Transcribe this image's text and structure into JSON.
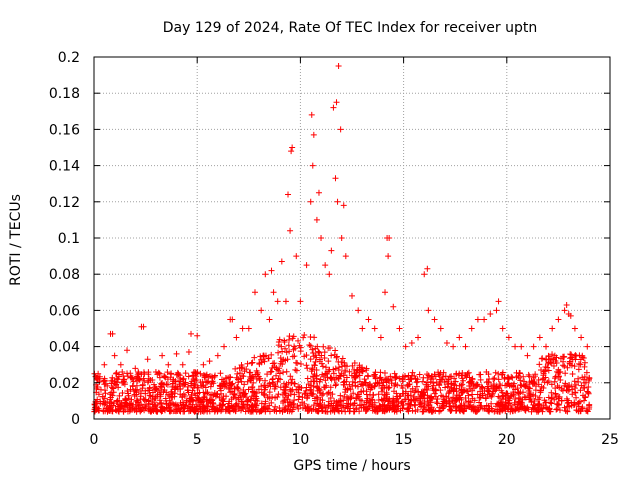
{
  "chart_data": {
    "type": "scatter",
    "title": "Day 129 of 2024, Rate Of TEC Index for receiver uptn",
    "xlabel": "GPS time / hours",
    "ylabel": "ROTI / TECUs",
    "xlim": [
      0,
      25
    ],
    "ylim": [
      0,
      0.2
    ],
    "xticks": [
      0,
      5,
      10,
      15,
      20,
      25
    ],
    "yticks": [
      0,
      0.02,
      0.04,
      0.06,
      0.08,
      0.1,
      0.12,
      0.14,
      0.16,
      0.18,
      0.2
    ],
    "xtick_labels": [
      "0",
      "5",
      "10",
      "15",
      "20",
      "25"
    ],
    "ytick_labels": [
      "0",
      "0.02",
      "0.04",
      "0.06",
      "0.08",
      "0.1",
      "0.12",
      "0.14",
      "0.16",
      "0.18",
      "0.2"
    ],
    "grid": true,
    "marker": "+",
    "color": "#ff0000",
    "series": [
      {
        "name": "ROTI",
        "x": [
          0.2,
          0.5,
          0.8,
          1.0,
          1.3,
          1.6,
          2.0,
          2.3,
          2.6,
          3.0,
          3.3,
          3.6,
          4.0,
          4.3,
          4.6,
          5.0,
          5.3,
          5.6,
          6.0,
          6.3,
          6.6,
          6.9,
          7.2,
          7.5,
          7.8,
          8.1,
          8.3,
          8.5,
          8.7,
          8.9,
          9.1,
          9.3,
          9.5,
          9.6,
          9.8,
          10.0,
          10.3,
          10.5,
          10.6,
          10.8,
          11.0,
          11.2,
          11.4,
          11.6,
          11.7,
          11.8,
          12.0,
          12.2,
          12.5,
          12.8,
          13.0,
          13.3,
          13.6,
          13.9,
          14.1,
          14.3,
          14.5,
          14.8,
          15.1,
          15.4,
          15.7,
          16.0,
          16.2,
          16.5,
          16.8,
          17.1,
          17.4,
          17.7,
          18.0,
          18.3,
          18.6,
          18.9,
          19.2,
          19.5,
          19.8,
          20.1,
          20.4,
          20.7,
          21.0,
          21.3,
          21.6,
          21.9,
          22.2,
          22.5,
          22.8,
          23.0,
          23.3,
          23.6,
          23.9,
          0.9,
          2.4,
          4.7,
          6.7,
          8.6,
          9.4,
          9.55,
          10.55,
          10.65,
          10.9,
          11.5,
          11.75,
          11.85,
          11.95,
          12.1,
          14.2,
          14.25,
          16.15,
          19.6,
          22.9,
          23.1
        ],
        "y": [
          0.025,
          0.03,
          0.047,
          0.035,
          0.03,
          0.038,
          0.028,
          0.051,
          0.033,
          0.026,
          0.035,
          0.03,
          0.036,
          0.03,
          0.037,
          0.046,
          0.03,
          0.032,
          0.035,
          0.04,
          0.055,
          0.045,
          0.05,
          0.05,
          0.07,
          0.06,
          0.08,
          0.055,
          0.07,
          0.065,
          0.087,
          0.065,
          0.104,
          0.15,
          0.09,
          0.065,
          0.085,
          0.12,
          0.14,
          0.11,
          0.1,
          0.085,
          0.08,
          0.172,
          0.133,
          0.12,
          0.1,
          0.09,
          0.068,
          0.06,
          0.05,
          0.055,
          0.05,
          0.045,
          0.07,
          0.1,
          0.062,
          0.05,
          0.04,
          0.042,
          0.045,
          0.08,
          0.06,
          0.055,
          0.05,
          0.042,
          0.04,
          0.045,
          0.04,
          0.05,
          0.055,
          0.055,
          0.058,
          0.06,
          0.05,
          0.045,
          0.04,
          0.04,
          0.035,
          0.04,
          0.045,
          0.04,
          0.05,
          0.055,
          0.06,
          0.058,
          0.05,
          0.045,
          0.04,
          0.047,
          0.051,
          0.047,
          0.055,
          0.082,
          0.124,
          0.148,
          0.168,
          0.157,
          0.125,
          0.093,
          0.175,
          0.195,
          0.16,
          0.118,
          0.1,
          0.09,
          0.083,
          0.065,
          0.063,
          0.057
        ]
      }
    ]
  }
}
